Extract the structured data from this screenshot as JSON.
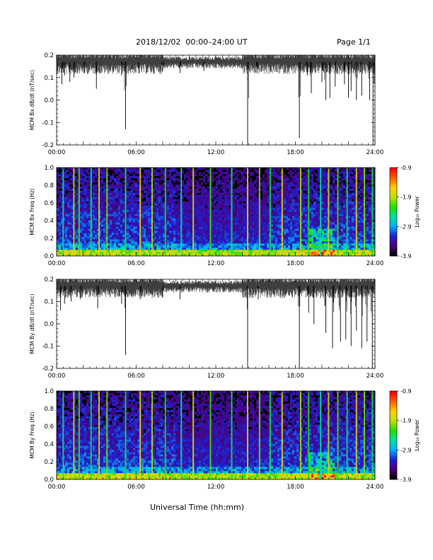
{
  "header": {
    "date_range": "2018/12/02  00:00–24:00 UT",
    "page": "Page 1/1"
  },
  "x_axis": {
    "label": "Universal Time (hh:mm)",
    "ticks": [
      "00:00",
      "06:00",
      "12:00",
      "18:00",
      "24:00"
    ]
  },
  "colorbar": {
    "label": "Log₁₀ Power",
    "ticks": [
      "-0.9",
      "-1.9",
      "-2.9",
      "-3.9"
    ],
    "range": [
      -3.9,
      -0.9
    ],
    "colormap": [
      "#000000",
      "#4b007a",
      "#2020d0",
      "#00b0ff",
      "#00e0a0",
      "#20e000",
      "#c0e000",
      "#ffd000",
      "#ff6000",
      "#ff0000"
    ]
  },
  "chart_data": [
    {
      "type": "line",
      "ylabel": "MCM Bx dB/dt (nT/sec)",
      "ylim": [
        -0.2,
        0.2
      ],
      "yticks": [
        "0.2",
        "0.1",
        "0.0",
        "-0.1",
        "-0.2"
      ],
      "xlim_hours": [
        0,
        24
      ],
      "baseline": 0.17,
      "spikes": [
        {
          "t": 0.4,
          "min": 0.07
        },
        {
          "t": 0.6,
          "min": 0.11
        },
        {
          "t": 1.0,
          "min": 0.08
        },
        {
          "t": 1.3,
          "min": 0.1
        },
        {
          "t": 2.1,
          "min": 0.12
        },
        {
          "t": 3.0,
          "min": 0.05
        },
        {
          "t": 4.9,
          "min": 0.11
        },
        {
          "t": 5.2,
          "min": -0.13
        },
        {
          "t": 6.2,
          "min": 0.12
        },
        {
          "t": 8.0,
          "min": 0.13
        },
        {
          "t": 9.3,
          "min": 0.12
        },
        {
          "t": 11.1,
          "min": 0.13
        },
        {
          "t": 14.4,
          "min": -0.2
        },
        {
          "t": 15.1,
          "min": 0.12
        },
        {
          "t": 18.3,
          "min": -0.17
        },
        {
          "t": 18.9,
          "min": 0.11
        },
        {
          "t": 19.2,
          "min": 0.03
        },
        {
          "t": 20.0,
          "min": 0.08
        },
        {
          "t": 20.3,
          "min": 0.0
        },
        {
          "t": 20.6,
          "min": 0.01
        },
        {
          "t": 21.0,
          "min": 0.06
        },
        {
          "t": 21.7,
          "min": 0.07
        },
        {
          "t": 22.0,
          "min": 0.01
        },
        {
          "t": 22.2,
          "min": 0.04
        },
        {
          "t": 22.6,
          "min": 0.0
        },
        {
          "t": 23.0,
          "min": 0.02
        },
        {
          "t": 23.6,
          "min": 0.0
        },
        {
          "t": 23.85,
          "min": -0.2
        }
      ]
    },
    {
      "type": "heatmap",
      "ylabel": "MCM Bx Freq (Hz)",
      "ylim": [
        0,
        1.0
      ],
      "yticks": [
        "1.0",
        "0.8",
        "0.6",
        "0.4",
        "0.2",
        "0.0"
      ],
      "xlim_hours": [
        0,
        24
      ],
      "zrange": [
        -3.9,
        -0.9
      ],
      "bright_lines_hours": [
        0.5,
        1.3,
        1.7,
        2.6,
        3.2,
        3.8,
        5.2,
        6.3,
        7.2,
        8.2,
        9.4,
        10.3,
        11.6,
        13.2,
        14.4,
        15.3,
        16.1,
        17.0,
        18.4,
        19.0,
        19.9,
        20.5,
        21.2,
        21.9,
        22.6,
        23.2,
        23.8
      ]
    },
    {
      "type": "line",
      "ylabel": "MCM By dB/dt (nT/sec)",
      "ylim": [
        -0.2,
        0.2
      ],
      "yticks": [
        "0.2",
        "0.1",
        "0.0",
        "-0.1",
        "-0.2"
      ],
      "xlim_hours": [
        0,
        24
      ],
      "baseline": 0.17,
      "spikes": [
        {
          "t": 0.3,
          "min": 0.06
        },
        {
          "t": 0.6,
          "min": 0.09
        },
        {
          "t": 1.1,
          "min": 0.1
        },
        {
          "t": 1.8,
          "min": 0.11
        },
        {
          "t": 3.1,
          "min": 0.07
        },
        {
          "t": 4.9,
          "min": 0.09
        },
        {
          "t": 5.2,
          "min": -0.14
        },
        {
          "t": 6.3,
          "min": 0.11
        },
        {
          "t": 8.0,
          "min": 0.12
        },
        {
          "t": 9.3,
          "min": 0.11
        },
        {
          "t": 14.4,
          "min": -0.2
        },
        {
          "t": 15.2,
          "min": 0.11
        },
        {
          "t": 18.3,
          "min": -0.2
        },
        {
          "t": 19.0,
          "min": 0.05
        },
        {
          "t": 19.4,
          "min": 0.0
        },
        {
          "t": 20.3,
          "min": -0.04
        },
        {
          "t": 20.8,
          "min": -0.11
        },
        {
          "t": 21.4,
          "min": -0.08
        },
        {
          "t": 21.8,
          "min": -0.07
        },
        {
          "t": 22.2,
          "min": -0.1
        },
        {
          "t": 22.6,
          "min": -0.03
        },
        {
          "t": 23.0,
          "min": -0.11
        },
        {
          "t": 23.4,
          "min": -0.08
        },
        {
          "t": 23.8,
          "min": -0.2
        }
      ]
    },
    {
      "type": "heatmap",
      "ylabel": "MCM By Freq (Hz)",
      "ylim": [
        0,
        1.0
      ],
      "yticks": [
        "1.0",
        "0.8",
        "0.6",
        "0.4",
        "0.2",
        "0.0"
      ],
      "xlim_hours": [
        0,
        24
      ],
      "zrange": [
        -3.9,
        -0.9
      ],
      "bright_lines_hours": [
        0.5,
        1.3,
        1.7,
        2.6,
        3.2,
        3.8,
        5.2,
        6.3,
        7.2,
        8.2,
        9.4,
        10.3,
        11.6,
        13.2,
        14.4,
        15.3,
        16.1,
        17.0,
        18.4,
        19.0,
        19.9,
        20.5,
        21.2,
        21.9,
        22.6,
        23.2,
        23.8
      ]
    }
  ]
}
